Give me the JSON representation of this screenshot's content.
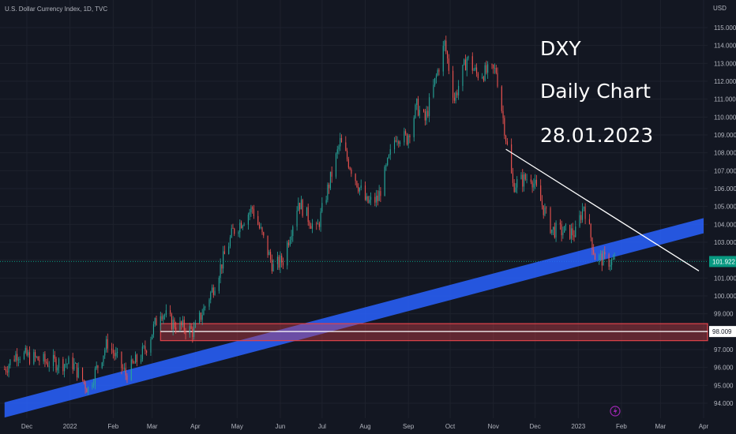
{
  "header": {
    "symbol_line": "U.S. Dollar Currency Index, 1D, TVC"
  },
  "chart_data": {
    "type": "candlestick",
    "title": "U.S. Dollar Currency Index, 1D, TVC",
    "currency": "USD",
    "y_tick_labels": [
      "94.000",
      "95.000",
      "96.000",
      "97.000",
      "98.000",
      "99.000",
      "100.000",
      "101.000",
      "102.000",
      "103.000",
      "104.000",
      "105.000",
      "106.000",
      "107.000",
      "108.000",
      "109.000",
      "110.000",
      "111.000",
      "112.000",
      "113.000",
      "114.000",
      "115.000"
    ],
    "ylim": [
      93.5,
      115.6
    ],
    "x_tick_labels": [
      "Dec",
      "2022",
      "Feb",
      "Mar",
      "Apr",
      "May",
      "Jun",
      "Jul",
      "Aug",
      "Sep",
      "Oct",
      "Nov",
      "Dec",
      "2023",
      "Feb",
      "Mar",
      "Apr"
    ],
    "x_tick_dates": [
      "2021-12-01",
      "2022-01-01",
      "2022-02-01",
      "2022-03-01",
      "2022-04-01",
      "2022-05-01",
      "2022-06-01",
      "2022-07-01",
      "2022-08-01",
      "2022-09-01",
      "2022-10-01",
      "2022-11-01",
      "2022-12-01",
      "2023-01-01",
      "2023-02-01",
      "2023-03-01",
      "2023-04-01"
    ],
    "last_price": "101.922",
    "marked_level": "98.009",
    "path_keypoints": [
      [
        "2021-11-15",
        95.9
      ],
      [
        "2021-11-24",
        96.8
      ],
      [
        "2021-12-15",
        96.3
      ],
      [
        "2022-01-03",
        96.2
      ],
      [
        "2022-01-14",
        94.8
      ],
      [
        "2022-01-28",
        97.4
      ],
      [
        "2022-02-10",
        95.6
      ],
      [
        "2022-02-24",
        97.0
      ],
      [
        "2022-03-07",
        99.2
      ],
      [
        "2022-03-15",
        98.5
      ],
      [
        "2022-03-31",
        98.0
      ],
      [
        "2022-04-14",
        100.5
      ],
      [
        "2022-04-28",
        103.6
      ],
      [
        "2022-05-12",
        104.9
      ],
      [
        "2022-05-27",
        101.6
      ],
      [
        "2022-06-03",
        102.0
      ],
      [
        "2022-06-14",
        105.3
      ],
      [
        "2022-06-27",
        103.6
      ],
      [
        "2022-07-14",
        108.6
      ],
      [
        "2022-07-27",
        106.2
      ],
      [
        "2022-08-02",
        105.2
      ],
      [
        "2022-08-10",
        105.4
      ],
      [
        "2022-08-23",
        109.0
      ],
      [
        "2022-08-31",
        108.8
      ],
      [
        "2022-09-07",
        110.6
      ],
      [
        "2022-09-13",
        109.8
      ],
      [
        "2022-09-27",
        114.1
      ],
      [
        "2022-10-04",
        111.0
      ],
      [
        "2022-10-13",
        113.3
      ],
      [
        "2022-10-20",
        112.4
      ],
      [
        "2022-11-03",
        112.6
      ],
      [
        "2022-11-15",
        106.2
      ],
      [
        "2022-11-28",
        106.7
      ],
      [
        "2022-12-13",
        103.7
      ],
      [
        "2022-12-30",
        103.5
      ],
      [
        "2023-01-05",
        105.1
      ],
      [
        "2023-01-13",
        102.2
      ],
      [
        "2023-01-20",
        102.0
      ],
      [
        "2023-01-27",
        101.9
      ]
    ],
    "annotations": {
      "text_lines": [
        "DXY",
        "Daily Chart",
        "28.01.2023"
      ],
      "resistance_line": {
        "from": [
          "2022-11-10",
          108.2
        ],
        "to": [
          "2023-04-01",
          101.4
        ]
      },
      "support_channel": {
        "from": [
          "2021-11-15",
          93.2
        ],
        "to": [
          "2023-04-01",
          103.5
        ],
        "width": 0.85
      },
      "demand_zone": {
        "from": "2022-03-07",
        "y_low": 97.5,
        "y_high": 98.45
      }
    },
    "colors": {
      "up": "#26a69a",
      "down": "#ef5350",
      "channel": "#2962ff",
      "zone": "#e0434a",
      "price_tag": "#089981",
      "background": "#131722"
    }
  },
  "footer": {
    "lightning_icon": "lightning-icon"
  }
}
